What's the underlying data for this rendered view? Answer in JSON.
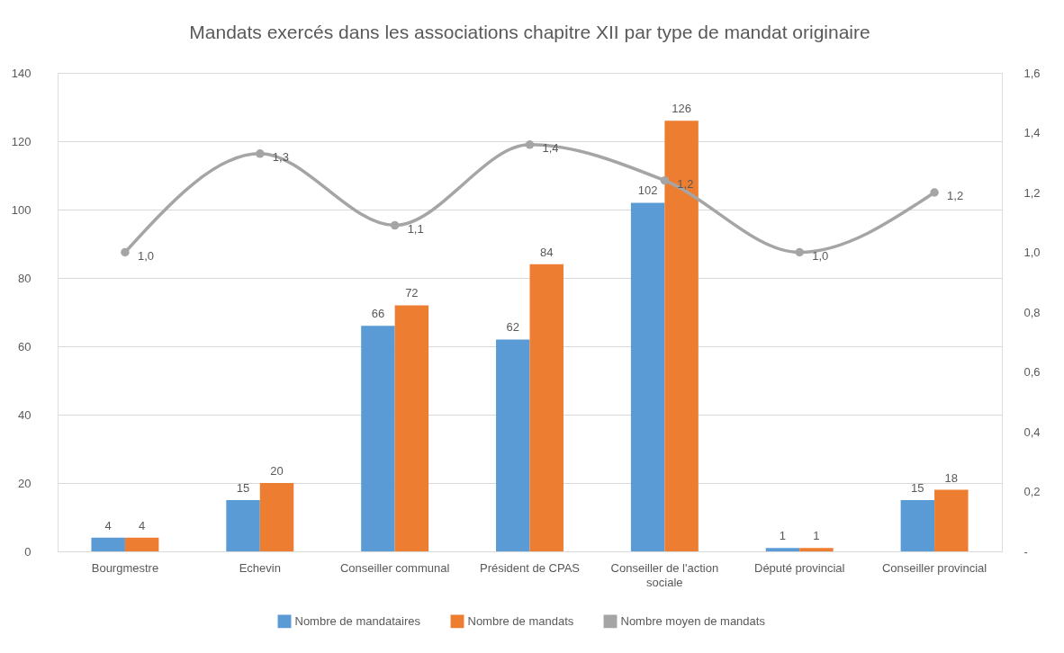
{
  "chart_data": {
    "type": "bar",
    "title": "Mandats exercés dans les associations chapitre XII par type de mandat originaire",
    "categories": [
      "Bourgmestre",
      "Echevin",
      "Conseiller communal",
      "Président de CPAS",
      "Conseiller de l'action sociale",
      "Député provincial",
      "Conseiller provincial"
    ],
    "series": [
      {
        "name": "Nombre de mandataires",
        "color": "#5b9bd5",
        "values": [
          4,
          15,
          66,
          62,
          102,
          1,
          15
        ],
        "value_labels": [
          "4",
          "15",
          "66",
          "62",
          "102",
          "1",
          "15"
        ]
      },
      {
        "name": "Nombre de mandats",
        "color": "#ed7d31",
        "values": [
          4,
          20,
          72,
          84,
          126,
          1,
          18
        ],
        "value_labels": [
          "4",
          "20",
          "72",
          "84",
          "126",
          "1",
          "18"
        ]
      },
      {
        "name": "Nombre moyen de mandats",
        "type": "line",
        "axis": "y2",
        "color": "#a5a5a5",
        "values": [
          1.0,
          1.33,
          1.09,
          1.36,
          1.24,
          1.0,
          1.2
        ],
        "value_labels": [
          "1,0",
          "1,3",
          "1,1",
          "1,4",
          "1,2",
          "1,0",
          "1,2"
        ]
      }
    ],
    "ylim": [
      0,
      140
    ],
    "yticks": [
      0,
      20,
      40,
      60,
      80,
      100,
      120,
      140
    ],
    "y2lim": [
      0,
      1.6
    ],
    "y2ticks": [
      {
        "value": 0,
        "label": "-"
      },
      {
        "value": 0.2,
        "label": "0,2"
      },
      {
        "value": 0.4,
        "label": "0,4"
      },
      {
        "value": 0.6,
        "label": "0,6"
      },
      {
        "value": 0.8,
        "label": "0,8"
      },
      {
        "value": 1.0,
        "label": "1,0"
      },
      {
        "value": 1.2,
        "label": "1,2"
      },
      {
        "value": 1.4,
        "label": "1,4"
      },
      {
        "value": 1.6,
        "label": "1,6"
      }
    ],
    "grid": "y",
    "legend": "bottom",
    "marker": "circle"
  }
}
